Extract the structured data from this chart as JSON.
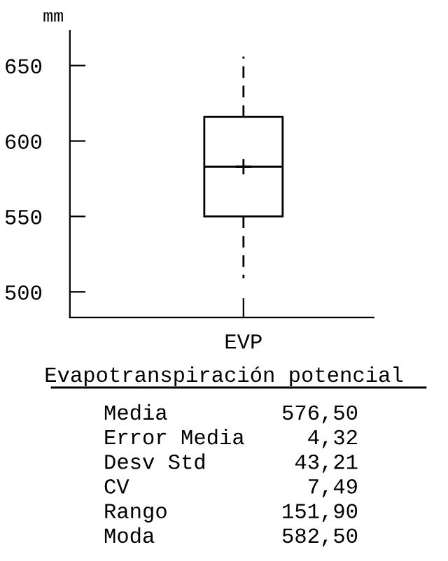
{
  "chart_data": {
    "type": "box",
    "ylabel": "mm",
    "categories": [
      "EVP"
    ],
    "boxes": [
      {
        "low": 509,
        "q1": 550,
        "median": 583,
        "q3": 616,
        "high": 656,
        "mean": 583
      }
    ],
    "ylim": [
      483,
      673
    ],
    "yticks": [
      500,
      550,
      600,
      650
    ],
    "grid": false,
    "line_style": "dashed",
    "annotations": [
      "Evapotranspiración potencial",
      "Media",
      "576,50",
      "Error Media",
      "4,32",
      "Desv Std",
      "43,21",
      "CV",
      "7,49",
      "Rango",
      "151,90",
      "Moda",
      "582,50"
    ]
  }
}
